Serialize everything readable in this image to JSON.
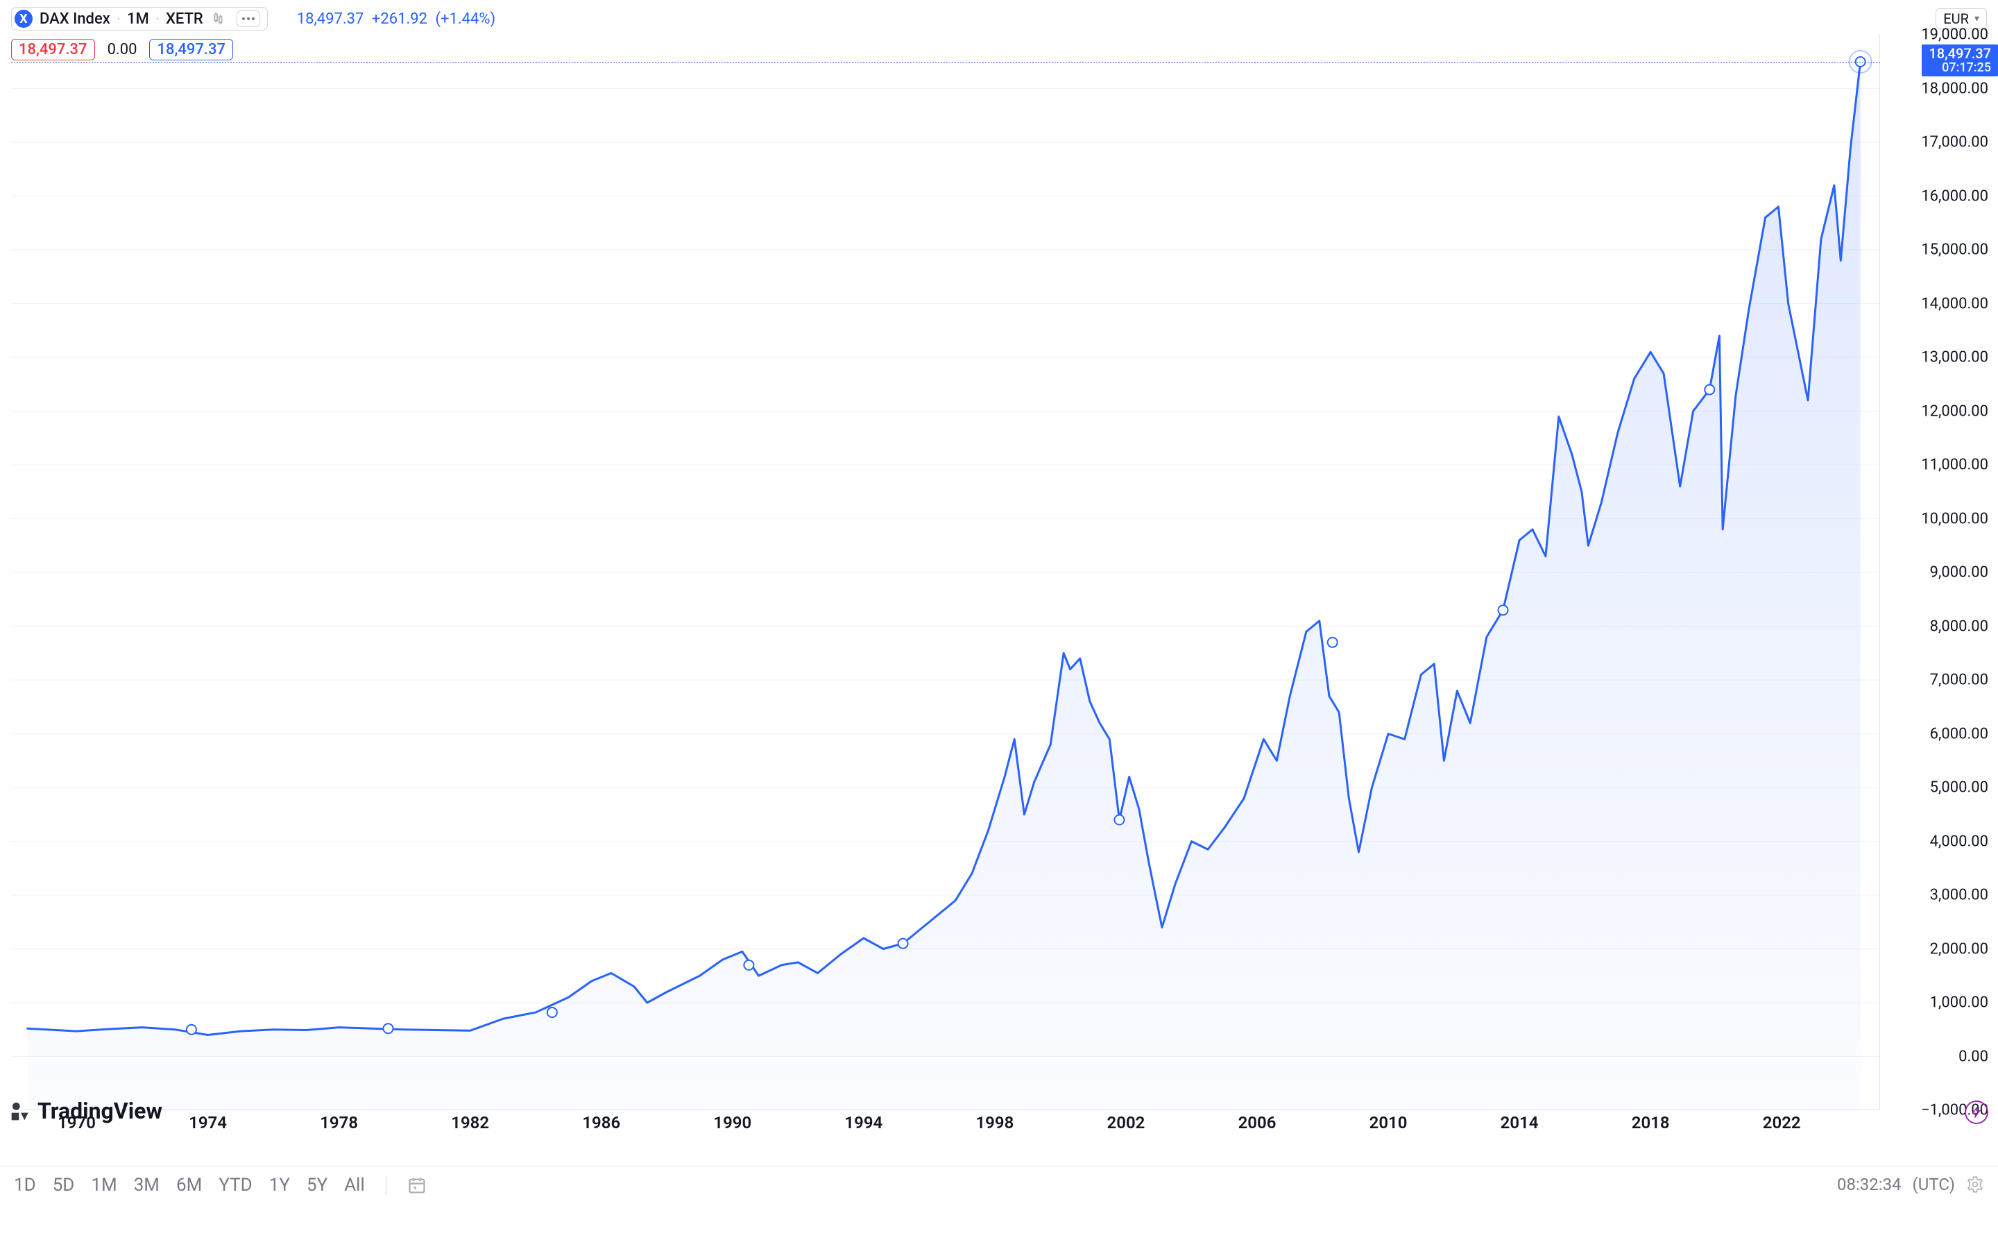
{
  "symbol": {
    "icon_letter": "X",
    "name": "DAX Index",
    "interval": "1M",
    "exchange": "XETR"
  },
  "quote": {
    "last": "18,497.37",
    "change": "+261.92",
    "change_pct": "(+1.44%)"
  },
  "currency": "EUR",
  "ohlc": {
    "open": "18,497.37",
    "mid": "0.00",
    "close": "18,497.37"
  },
  "price_tag": {
    "value": "18,497.37",
    "countdown": "07:17:25"
  },
  "logo_text": "TradingView",
  "footer": {
    "ranges": [
      "1D",
      "5D",
      "1M",
      "3M",
      "6M",
      "YTD",
      "1Y",
      "5Y",
      "All"
    ],
    "clock": "08:32:34",
    "tz": "(UTC)"
  },
  "chart": {
    "type": "area",
    "line_color": "#2962ff",
    "line_width": 3,
    "fill_top": "rgba(41,98,255,0.15)",
    "fill_bottom": "rgba(41,98,255,0.02)",
    "grid_color": "#f0f3fa",
    "axis_border": "#e0e3eb",
    "bg": "#ffffff",
    "x_min": 1968,
    "x_max": 2025,
    "y_min": -1000,
    "y_max": 19000,
    "y_ticks": [
      -1000,
      0,
      1000,
      2000,
      3000,
      4000,
      5000,
      6000,
      7000,
      8000,
      9000,
      10000,
      11000,
      12000,
      13000,
      14000,
      15000,
      16000,
      17000,
      18000,
      19000
    ],
    "y_tick_labels": [
      "−1,000.00",
      "0.00",
      "1,000.00",
      "2,000.00",
      "3,000.00",
      "4,000.00",
      "5,000.00",
      "6,000.00",
      "7,000.00",
      "8,000.00",
      "9,000.00",
      "10,000.00",
      "11,000.00",
      "12,000.00",
      "13,000.00",
      "14,000.00",
      "15,000.00",
      "16,000.00",
      "17,000.00",
      "18,000.00",
      "19,000.00"
    ],
    "x_ticks": [
      1970,
      1974,
      1978,
      1982,
      1986,
      1990,
      1994,
      1998,
      2002,
      2006,
      2010,
      2014,
      2018,
      2022
    ],
    "label_fontsize": 22,
    "xlabel_fontsize": 24,
    "markers": [
      {
        "x": 1973.5,
        "y": 500
      },
      {
        "x": 1979.5,
        "y": 520
      },
      {
        "x": 1984.5,
        "y": 820
      },
      {
        "x": 1990.5,
        "y": 1700
      },
      {
        "x": 1995.2,
        "y": 2100
      },
      {
        "x": 2001.8,
        "y": 4400
      },
      {
        "x": 2008.3,
        "y": 7700
      },
      {
        "x": 2013.5,
        "y": 8300
      },
      {
        "x": 2019.8,
        "y": 12400
      },
      {
        "x": 2024.4,
        "y": 18497
      }
    ],
    "series": [
      {
        "x": 1968.5,
        "y": 520
      },
      {
        "x": 1970,
        "y": 470
      },
      {
        "x": 1971,
        "y": 510
      },
      {
        "x": 1972,
        "y": 540
      },
      {
        "x": 1973,
        "y": 500
      },
      {
        "x": 1974,
        "y": 400
      },
      {
        "x": 1975,
        "y": 470
      },
      {
        "x": 1976,
        "y": 500
      },
      {
        "x": 1977,
        "y": 490
      },
      {
        "x": 1978,
        "y": 540
      },
      {
        "x": 1979,
        "y": 520
      },
      {
        "x": 1980,
        "y": 500
      },
      {
        "x": 1981,
        "y": 490
      },
      {
        "x": 1982,
        "y": 480
      },
      {
        "x": 1983,
        "y": 700
      },
      {
        "x": 1984,
        "y": 820
      },
      {
        "x": 1985,
        "y": 1100
      },
      {
        "x": 1985.7,
        "y": 1400
      },
      {
        "x": 1986.3,
        "y": 1550
      },
      {
        "x": 1987,
        "y": 1300
      },
      {
        "x": 1987.4,
        "y": 1000
      },
      {
        "x": 1988,
        "y": 1200
      },
      {
        "x": 1989,
        "y": 1500
      },
      {
        "x": 1989.7,
        "y": 1800
      },
      {
        "x": 1990.3,
        "y": 1950
      },
      {
        "x": 1990.8,
        "y": 1500
      },
      {
        "x": 1991.5,
        "y": 1700
      },
      {
        "x": 1992,
        "y": 1750
      },
      {
        "x": 1992.6,
        "y": 1550
      },
      {
        "x": 1993.3,
        "y": 1900
      },
      {
        "x": 1994,
        "y": 2200
      },
      {
        "x": 1994.6,
        "y": 2000
      },
      {
        "x": 1995.2,
        "y": 2100
      },
      {
        "x": 1996,
        "y": 2500
      },
      {
        "x": 1996.8,
        "y": 2900
      },
      {
        "x": 1997.3,
        "y": 3400
      },
      {
        "x": 1997.8,
        "y": 4200
      },
      {
        "x": 1998.3,
        "y": 5200
      },
      {
        "x": 1998.6,
        "y": 5900
      },
      {
        "x": 1998.9,
        "y": 4500
      },
      {
        "x": 1999.2,
        "y": 5100
      },
      {
        "x": 1999.7,
        "y": 5800
      },
      {
        "x": 2000.1,
        "y": 7500
      },
      {
        "x": 2000.3,
        "y": 7200
      },
      {
        "x": 2000.6,
        "y": 7400
      },
      {
        "x": 2000.9,
        "y": 6600
      },
      {
        "x": 2001.2,
        "y": 6200
      },
      {
        "x": 2001.5,
        "y": 5900
      },
      {
        "x": 2001.8,
        "y": 4400
      },
      {
        "x": 2002.1,
        "y": 5200
      },
      {
        "x": 2002.4,
        "y": 4600
      },
      {
        "x": 2002.7,
        "y": 3600
      },
      {
        "x": 2003.1,
        "y": 2400
      },
      {
        "x": 2003.5,
        "y": 3200
      },
      {
        "x": 2004,
        "y": 4000
      },
      {
        "x": 2004.5,
        "y": 3850
      },
      {
        "x": 2005,
        "y": 4250
      },
      {
        "x": 2005.6,
        "y": 4800
      },
      {
        "x": 2006.2,
        "y": 5900
      },
      {
        "x": 2006.6,
        "y": 5500
      },
      {
        "x": 2007,
        "y": 6700
      },
      {
        "x": 2007.5,
        "y": 7900
      },
      {
        "x": 2007.9,
        "y": 8100
      },
      {
        "x": 2008.2,
        "y": 6700
      },
      {
        "x": 2008.5,
        "y": 6400
      },
      {
        "x": 2008.8,
        "y": 4800
      },
      {
        "x": 2009.1,
        "y": 3800
      },
      {
        "x": 2009.5,
        "y": 5000
      },
      {
        "x": 2010,
        "y": 6000
      },
      {
        "x": 2010.5,
        "y": 5900
      },
      {
        "x": 2011,
        "y": 7100
      },
      {
        "x": 2011.4,
        "y": 7300
      },
      {
        "x": 2011.7,
        "y": 5500
      },
      {
        "x": 2012.1,
        "y": 6800
      },
      {
        "x": 2012.5,
        "y": 6200
      },
      {
        "x": 2013,
        "y": 7800
      },
      {
        "x": 2013.5,
        "y": 8300
      },
      {
        "x": 2014,
        "y": 9600
      },
      {
        "x": 2014.4,
        "y": 9800
      },
      {
        "x": 2014.8,
        "y": 9300
      },
      {
        "x": 2015.2,
        "y": 11900
      },
      {
        "x": 2015.6,
        "y": 11200
      },
      {
        "x": 2015.9,
        "y": 10500
      },
      {
        "x": 2016.1,
        "y": 9500
      },
      {
        "x": 2016.5,
        "y": 10300
      },
      {
        "x": 2017,
        "y": 11600
      },
      {
        "x": 2017.5,
        "y": 12600
      },
      {
        "x": 2018,
        "y": 13100
      },
      {
        "x": 2018.4,
        "y": 12700
      },
      {
        "x": 2018.9,
        "y": 10600
      },
      {
        "x": 2019.3,
        "y": 12000
      },
      {
        "x": 2019.8,
        "y": 12400
      },
      {
        "x": 2020.1,
        "y": 13400
      },
      {
        "x": 2020.2,
        "y": 9800
      },
      {
        "x": 2020.6,
        "y": 12300
      },
      {
        "x": 2021,
        "y": 13900
      },
      {
        "x": 2021.5,
        "y": 15600
      },
      {
        "x": 2021.9,
        "y": 15800
      },
      {
        "x": 2022.2,
        "y": 14000
      },
      {
        "x": 2022.6,
        "y": 12800
      },
      {
        "x": 2022.8,
        "y": 12200
      },
      {
        "x": 2023.2,
        "y": 15200
      },
      {
        "x": 2023.6,
        "y": 16200
      },
      {
        "x": 2023.8,
        "y": 14800
      },
      {
        "x": 2024.1,
        "y": 16900
      },
      {
        "x": 2024.4,
        "y": 18497
      }
    ]
  }
}
